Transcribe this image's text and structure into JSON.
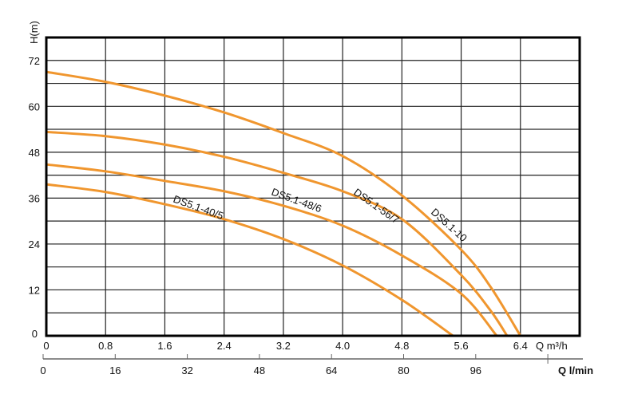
{
  "chart_data": {
    "type": "line",
    "ylabel": "H(m)",
    "xlabel": "Q m³/h",
    "x2label": "Q l/min",
    "xlim": [
      0,
      7.2
    ],
    "ylim": [
      0,
      78
    ],
    "xticks": [
      "0",
      "0.8",
      "1.6",
      "2.4",
      "3.2",
      "4.0",
      "4.8",
      "5.6",
      "6.4"
    ],
    "yticks": [
      "0",
      "12",
      "24",
      "36",
      "48",
      "60",
      "72"
    ],
    "x2ticks": [
      "0",
      "16",
      "32",
      "48",
      "64",
      "80",
      "96"
    ],
    "grid": true,
    "line_color": "#F0962E",
    "series": [
      {
        "name": "DS5.1-10",
        "x": [
          0,
          0.8,
          1.6,
          2.4,
          3.2,
          4.0,
          4.8,
          5.6,
          6.0,
          6.4
        ],
        "y": [
          69,
          66.4,
          62.8,
          58.4,
          53,
          47,
          36.7,
          22.5,
          12.7,
          0
        ]
      },
      {
        "name": "DS5.1-56/7",
        "x": [
          0,
          0.8,
          1.6,
          2.4,
          3.2,
          4.0,
          4.8,
          5.6,
          6.0,
          6.22
        ],
        "y": [
          53.3,
          52.2,
          50,
          46.8,
          42.6,
          37.8,
          30.5,
          15.9,
          6.5,
          0
        ]
      },
      {
        "name": "DS5.1-48/6",
        "x": [
          0,
          0.8,
          1.6,
          2.4,
          3.2,
          4.0,
          4.8,
          5.6,
          6.08
        ],
        "y": [
          44.8,
          43,
          40.5,
          37.8,
          34,
          28.8,
          21,
          11,
          0
        ]
      },
      {
        "name": "DS5.1-40/5",
        "x": [
          0,
          0.8,
          1.6,
          2.4,
          3.2,
          4.0,
          4.8,
          5.49
        ],
        "y": [
          39.6,
          37.6,
          34.4,
          30.5,
          25.3,
          18.4,
          9.4,
          0
        ]
      }
    ]
  }
}
